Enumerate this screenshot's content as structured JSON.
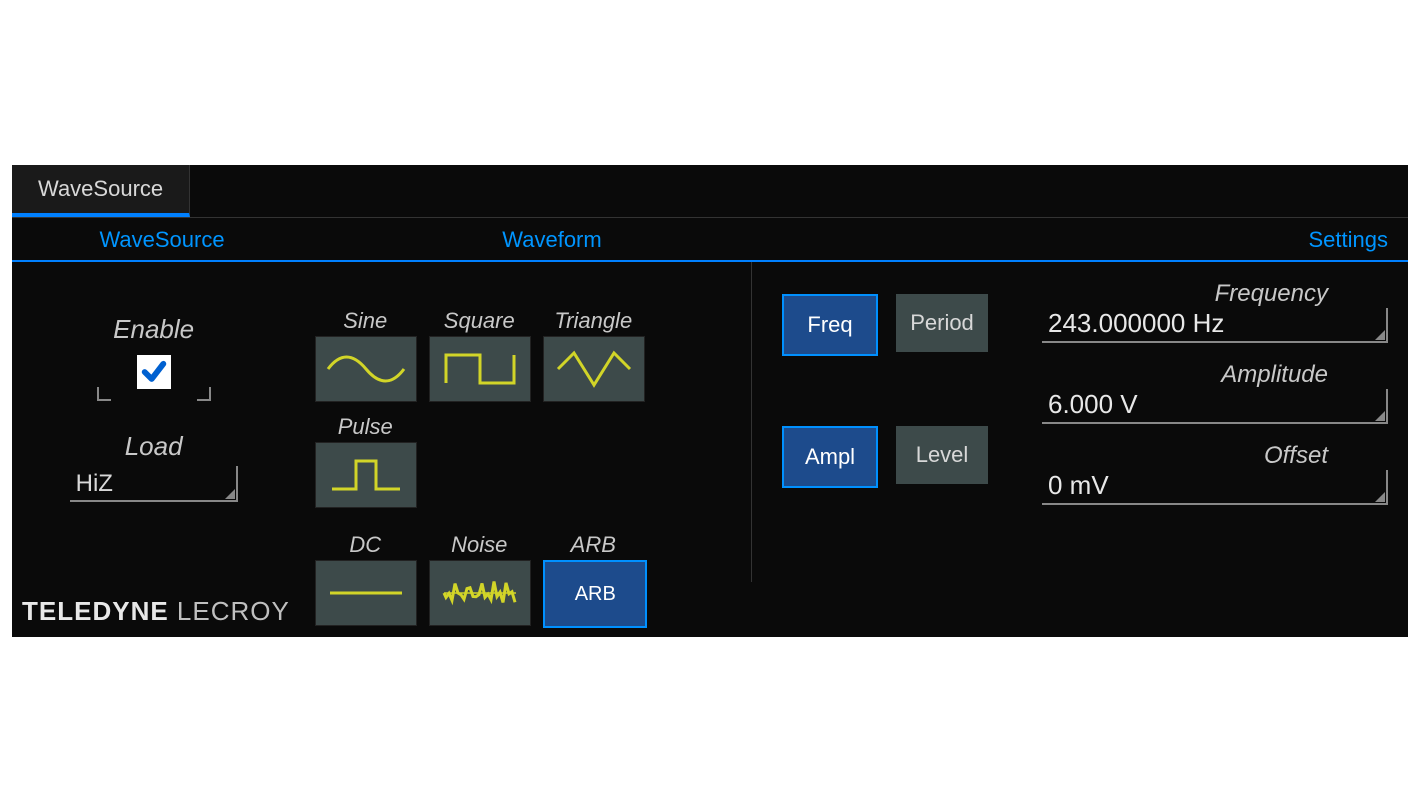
{
  "tab": {
    "label": "WaveSource"
  },
  "sections": {
    "wavesource": "WaveSource",
    "waveform": "Waveform",
    "settings": "Settings"
  },
  "wavesource": {
    "enable_label": "Enable",
    "enable_checked": true,
    "load_label": "Load",
    "load_value": "HiZ"
  },
  "waveform": {
    "items": [
      {
        "label": "Sine",
        "type": "sine",
        "selected": false
      },
      {
        "label": "Square",
        "type": "square",
        "selected": false
      },
      {
        "label": "Triangle",
        "type": "triangle",
        "selected": false
      },
      {
        "label": "Pulse",
        "type": "pulse",
        "selected": false
      },
      {
        "label": "DC",
        "type": "dc",
        "selected": false
      },
      {
        "label": "Noise",
        "type": "noise",
        "selected": false
      },
      {
        "label": "ARB",
        "type": "arb",
        "selected": true
      }
    ],
    "icon_stroke": "#d2d528",
    "arb_text": "ARB"
  },
  "settings": {
    "toggles": {
      "row1": [
        {
          "label": "Freq",
          "active": true
        },
        {
          "label": "Period",
          "active": false
        }
      ],
      "row2": [
        {
          "label": "Ampl",
          "active": true
        },
        {
          "label": "Level",
          "active": false
        }
      ]
    },
    "readouts": [
      {
        "label": "Frequency",
        "value": "243.000000 Hz"
      },
      {
        "label": "Amplitude",
        "value": "6.000 V"
      },
      {
        "label": "Offset",
        "value": "0 mV"
      }
    ]
  },
  "branding": {
    "bold": "TELEDYNE",
    "light": " LECROY"
  },
  "colors": {
    "accent": "#0090ff",
    "btn_bg": "#3d4a4a",
    "btn_active_bg": "#1d4b8c",
    "panel_bg": "#0a0a0a",
    "waveform_stroke": "#d2d528"
  }
}
